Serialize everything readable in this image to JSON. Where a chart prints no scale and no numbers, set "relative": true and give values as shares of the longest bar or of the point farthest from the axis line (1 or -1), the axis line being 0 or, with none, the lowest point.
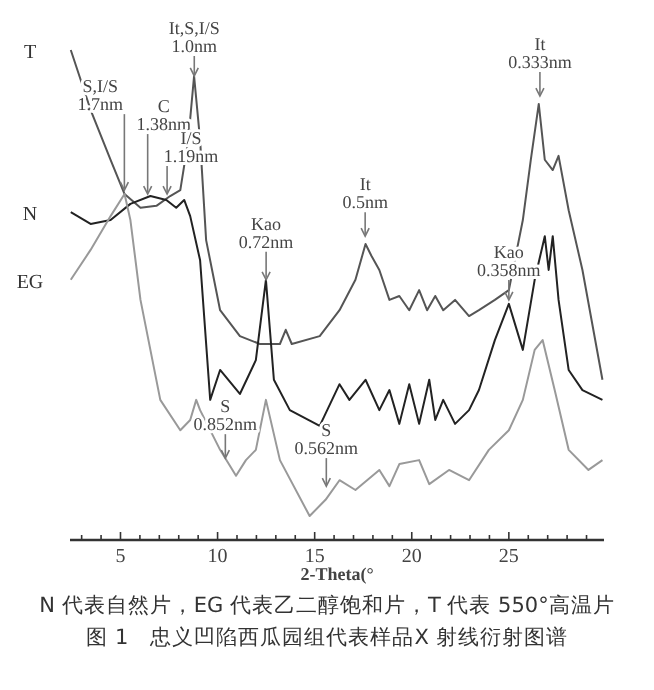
{
  "chart_data": {
    "type": "line",
    "relative": true,
    "xlabel": "2-Theta(°",
    "xlim": [
      2.4,
      29.9
    ],
    "xticks": [
      {
        "value": 3,
        "label": null
      },
      {
        "value": 4,
        "label": null
      },
      5,
      {
        "value": 6,
        "label": null
      },
      {
        "value": 7,
        "label": null
      },
      {
        "value": 8,
        "label": null
      },
      {
        "value": 9,
        "label": null
      },
      10,
      {
        "value": 11,
        "label": null
      },
      {
        "value": 12,
        "label": null
      },
      {
        "value": 13,
        "label": null
      },
      {
        "value": 14,
        "label": null
      },
      15,
      {
        "value": 16,
        "label": null
      },
      {
        "value": 17,
        "label": null
      },
      {
        "value": 18,
        "label": null
      },
      {
        "value": 19,
        "label": null
      },
      20,
      {
        "value": 21,
        "label": null
      },
      {
        "value": 22,
        "label": null
      },
      {
        "value": 23,
        "label": null
      },
      {
        "value": 24,
        "label": null
      },
      25,
      {
        "value": 26,
        "label": null
      },
      {
        "value": 27,
        "label": null
      },
      {
        "value": 28,
        "label": null
      },
      {
        "value": 29,
        "label": null
      }
    ],
    "grid": false,
    "marker": "none",
    "line_style": "solid",
    "series": [
      {
        "name": "T",
        "color": "#555555",
        "x": [
          2.44,
          3.46,
          4.49,
          5.21,
          6.03,
          6.85,
          7.56,
          8.08,
          8.49,
          8.79,
          9.1,
          9.41,
          10.13,
          11.15,
          12.18,
          13.21,
          13.51,
          13.82,
          15.26,
          16.28,
          17.1,
          17.62,
          17.92,
          18.33,
          18.85,
          19.36,
          19.87,
          20.38,
          20.79,
          21.21,
          21.62,
          22.23,
          22.95,
          23.46,
          24.28,
          25.0,
          25.72,
          26.13,
          26.54,
          26.85,
          27.26,
          27.56,
          28.08,
          28.79,
          29.82
        ],
        "values": [
          1.0,
          0.878,
          0.776,
          0.706,
          0.678,
          0.682,
          0.702,
          0.714,
          0.816,
          0.947,
          0.816,
          0.612,
          0.469,
          0.416,
          0.4,
          0.4,
          0.429,
          0.4,
          0.416,
          0.469,
          0.531,
          0.604,
          0.58,
          0.551,
          0.49,
          0.498,
          0.469,
          0.51,
          0.469,
          0.498,
          0.469,
          0.49,
          0.457,
          0.469,
          0.49,
          0.51,
          0.653,
          0.776,
          0.89,
          0.776,
          0.755,
          0.784,
          0.673,
          0.551,
          0.327
        ]
      },
      {
        "name": "N",
        "color": "#222222",
        "x": [
          2.44,
          3.46,
          4.49,
          5.51,
          6.54,
          7.36,
          7.87,
          8.28,
          8.59,
          9.1,
          9.62,
          10.13,
          11.15,
          11.97,
          12.49,
          12.9,
          13.72,
          15.26,
          16.28,
          16.79,
          17.62,
          18.33,
          18.85,
          19.36,
          19.87,
          20.38,
          20.9,
          21.21,
          21.62,
          22.23,
          22.95,
          23.46,
          24.28,
          25.0,
          25.72,
          26.33,
          26.85,
          27.05,
          27.26,
          27.56,
          28.08,
          28.79,
          29.82
        ],
        "values": [
          0.669,
          0.645,
          0.653,
          0.686,
          0.702,
          0.694,
          0.678,
          0.694,
          0.661,
          0.571,
          0.286,
          0.347,
          0.298,
          0.367,
          0.531,
          0.327,
          0.265,
          0.233,
          0.318,
          0.286,
          0.327,
          0.265,
          0.306,
          0.237,
          0.318,
          0.237,
          0.327,
          0.245,
          0.286,
          0.237,
          0.265,
          0.306,
          0.408,
          0.482,
          0.388,
          0.531,
          0.62,
          0.551,
          0.62,
          0.49,
          0.347,
          0.306,
          0.286
        ]
      },
      {
        "name": "EG",
        "color": "#999999",
        "x": [
          2.44,
          3.46,
          4.49,
          5.21,
          5.51,
          6.03,
          7.05,
          8.08,
          8.59,
          8.9,
          9.1,
          10.13,
          10.95,
          11.46,
          11.97,
          12.49,
          13.21,
          14.74,
          15.56,
          16.28,
          17.1,
          18.33,
          18.85,
          19.36,
          20.38,
          20.9,
          21.92,
          22.95,
          23.97,
          25.0,
          25.72,
          26.33,
          26.74,
          27.36,
          28.08,
          29.1,
          29.82
        ],
        "values": [
          0.531,
          0.592,
          0.661,
          0.706,
          0.653,
          0.49,
          0.286,
          0.224,
          0.245,
          0.286,
          0.265,
          0.184,
          0.131,
          0.163,
          0.184,
          0.286,
          0.163,
          0.049,
          0.082,
          0.122,
          0.102,
          0.143,
          0.11,
          0.155,
          0.163,
          0.114,
          0.143,
          0.122,
          0.184,
          0.224,
          0.286,
          0.388,
          0.408,
          0.306,
          0.184,
          0.143,
          0.163
        ]
      }
    ],
    "annotations": [
      {
        "text": "S,I/S 1.7nm",
        "x": 5.2,
        "y": 0.714
      },
      {
        "text": "C 1.38nm",
        "x": 6.4,
        "y": 0.706
      },
      {
        "text": "I/S 1.19nm",
        "x": 7.4,
        "y": 0.706
      },
      {
        "text": "It,S,I/S 1.0nm",
        "x": 8.8,
        "y": 0.947
      },
      {
        "text": "Kao 0.72nm",
        "x": 12.5,
        "y": 0.531
      },
      {
        "text": "It 0.5nm",
        "x": 17.6,
        "y": 0.62
      },
      {
        "text": "Kao 0.358nm",
        "x": 25.0,
        "y": 0.49
      },
      {
        "text": "It 0.333nm",
        "x": 26.6,
        "y": 0.906
      },
      {
        "text": "S 0.852nm",
        "x": 10.4,
        "y": 0.167
      },
      {
        "text": "S 0.562nm",
        "x": 15.6,
        "y": 0.11
      },
      "N 代表自然片，EG 代表乙二醇饱和片，T 代表 550°高温片",
      "图 1　忠义凹陷西瓜园组代表样品X 射线衍射图谱"
    ]
  }
}
